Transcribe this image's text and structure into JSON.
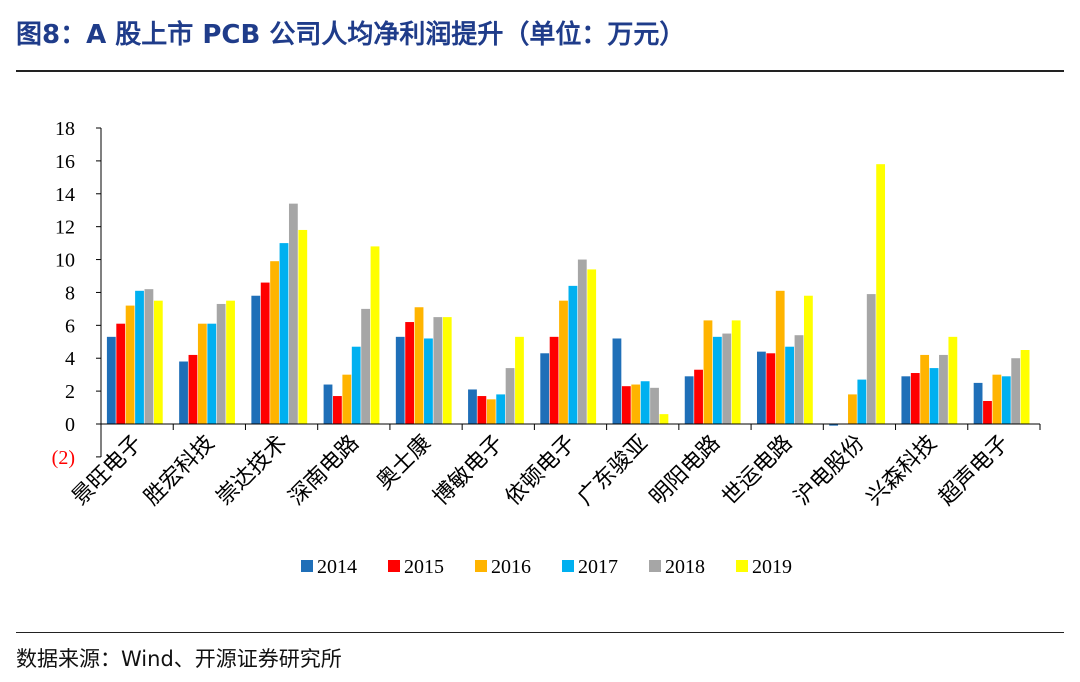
{
  "header": {
    "title": "图8：A 股上市 PCB 公司人均净利润提升（单位：万元）"
  },
  "footer": {
    "source": "数据来源：Wind、开源证券研究所"
  },
  "chart_data": {
    "type": "bar",
    "ylim": [
      -2,
      18
    ],
    "yticks": [
      18,
      16,
      14,
      12,
      10,
      8,
      6,
      4,
      2,
      0,
      -2
    ],
    "ytick_labels": [
      "18",
      "16",
      "14",
      "12",
      "10",
      "8",
      "6",
      "4",
      "2",
      "0",
      "(2)"
    ],
    "grid": false,
    "legend_position": "bottom",
    "categories": [
      "景旺电子",
      "胜宏科技",
      "崇达技术",
      "深南电路",
      "奥士康",
      "博敏电子",
      "依顿电子",
      "广东骏亚",
      "明阳电路",
      "世运电路",
      "沪电股份",
      "兴森科技",
      "超声电子"
    ],
    "series": [
      {
        "name": "2014",
        "color": "#1f6fb8",
        "values": [
          5.3,
          3.8,
          7.8,
          2.4,
          5.3,
          2.1,
          4.3,
          5.2,
          2.9,
          4.4,
          -0.1,
          2.9,
          2.5
        ]
      },
      {
        "name": "2015",
        "color": "#ff0000",
        "values": [
          6.1,
          4.2,
          8.6,
          1.7,
          6.2,
          1.7,
          5.3,
          2.3,
          3.3,
          4.3,
          0,
          3.1,
          1.4
        ]
      },
      {
        "name": "2016",
        "color": "#ffb400",
        "values": [
          7.2,
          6.1,
          9.9,
          3.0,
          7.1,
          1.5,
          7.5,
          2.4,
          6.3,
          8.1,
          1.8,
          4.2,
          3.0
        ]
      },
      {
        "name": "2017",
        "color": "#00b0f0",
        "values": [
          8.1,
          6.1,
          11.0,
          4.7,
          5.2,
          1.8,
          8.4,
          2.6,
          5.3,
          4.7,
          2.7,
          3.4,
          2.9
        ]
      },
      {
        "name": "2018",
        "color": "#a6a6a6",
        "values": [
          8.2,
          7.3,
          13.4,
          7.0,
          6.5,
          3.4,
          10.0,
          2.2,
          5.5,
          5.4,
          7.9,
          4.2,
          4.0
        ]
      },
      {
        "name": "2019",
        "color": "#ffff00",
        "values": [
          7.5,
          7.5,
          11.8,
          10.8,
          6.5,
          5.3,
          9.4,
          0.6,
          6.3,
          7.8,
          15.8,
          5.3,
          4.5
        ]
      }
    ]
  }
}
